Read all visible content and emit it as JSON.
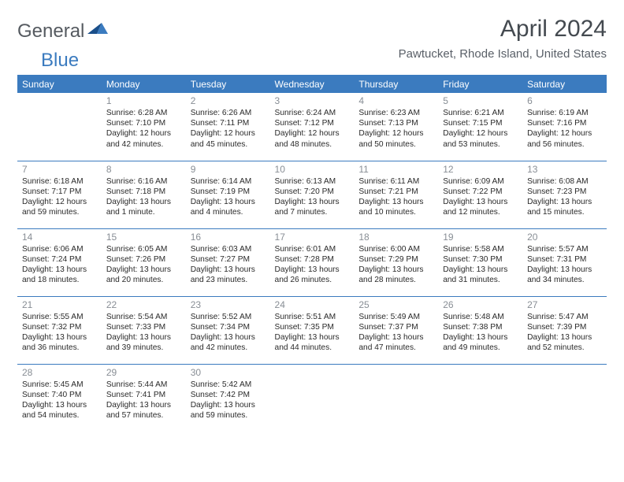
{
  "brand": {
    "general": "General",
    "blue": "Blue"
  },
  "title": "April 2024",
  "location": "Pawtucket, Rhode Island, United States",
  "header_color": "#3b7bbf",
  "days": [
    "Sunday",
    "Monday",
    "Tuesday",
    "Wednesday",
    "Thursday",
    "Friday",
    "Saturday"
  ],
  "weeks": [
    [
      {
        "n": "",
        "l": ""
      },
      {
        "n": "1",
        "l": "Sunrise: 6:28 AM\nSunset: 7:10 PM\nDaylight: 12 hours and 42 minutes."
      },
      {
        "n": "2",
        "l": "Sunrise: 6:26 AM\nSunset: 7:11 PM\nDaylight: 12 hours and 45 minutes."
      },
      {
        "n": "3",
        "l": "Sunrise: 6:24 AM\nSunset: 7:12 PM\nDaylight: 12 hours and 48 minutes."
      },
      {
        "n": "4",
        "l": "Sunrise: 6:23 AM\nSunset: 7:13 PM\nDaylight: 12 hours and 50 minutes."
      },
      {
        "n": "5",
        "l": "Sunrise: 6:21 AM\nSunset: 7:15 PM\nDaylight: 12 hours and 53 minutes."
      },
      {
        "n": "6",
        "l": "Sunrise: 6:19 AM\nSunset: 7:16 PM\nDaylight: 12 hours and 56 minutes."
      }
    ],
    [
      {
        "n": "7",
        "l": "Sunrise: 6:18 AM\nSunset: 7:17 PM\nDaylight: 12 hours and 59 minutes."
      },
      {
        "n": "8",
        "l": "Sunrise: 6:16 AM\nSunset: 7:18 PM\nDaylight: 13 hours and 1 minute."
      },
      {
        "n": "9",
        "l": "Sunrise: 6:14 AM\nSunset: 7:19 PM\nDaylight: 13 hours and 4 minutes."
      },
      {
        "n": "10",
        "l": "Sunrise: 6:13 AM\nSunset: 7:20 PM\nDaylight: 13 hours and 7 minutes."
      },
      {
        "n": "11",
        "l": "Sunrise: 6:11 AM\nSunset: 7:21 PM\nDaylight: 13 hours and 10 minutes."
      },
      {
        "n": "12",
        "l": "Sunrise: 6:09 AM\nSunset: 7:22 PM\nDaylight: 13 hours and 12 minutes."
      },
      {
        "n": "13",
        "l": "Sunrise: 6:08 AM\nSunset: 7:23 PM\nDaylight: 13 hours and 15 minutes."
      }
    ],
    [
      {
        "n": "14",
        "l": "Sunrise: 6:06 AM\nSunset: 7:24 PM\nDaylight: 13 hours and 18 minutes."
      },
      {
        "n": "15",
        "l": "Sunrise: 6:05 AM\nSunset: 7:26 PM\nDaylight: 13 hours and 20 minutes."
      },
      {
        "n": "16",
        "l": "Sunrise: 6:03 AM\nSunset: 7:27 PM\nDaylight: 13 hours and 23 minutes."
      },
      {
        "n": "17",
        "l": "Sunrise: 6:01 AM\nSunset: 7:28 PM\nDaylight: 13 hours and 26 minutes."
      },
      {
        "n": "18",
        "l": "Sunrise: 6:00 AM\nSunset: 7:29 PM\nDaylight: 13 hours and 28 minutes."
      },
      {
        "n": "19",
        "l": "Sunrise: 5:58 AM\nSunset: 7:30 PM\nDaylight: 13 hours and 31 minutes."
      },
      {
        "n": "20",
        "l": "Sunrise: 5:57 AM\nSunset: 7:31 PM\nDaylight: 13 hours and 34 minutes."
      }
    ],
    [
      {
        "n": "21",
        "l": "Sunrise: 5:55 AM\nSunset: 7:32 PM\nDaylight: 13 hours and 36 minutes."
      },
      {
        "n": "22",
        "l": "Sunrise: 5:54 AM\nSunset: 7:33 PM\nDaylight: 13 hours and 39 minutes."
      },
      {
        "n": "23",
        "l": "Sunrise: 5:52 AM\nSunset: 7:34 PM\nDaylight: 13 hours and 42 minutes."
      },
      {
        "n": "24",
        "l": "Sunrise: 5:51 AM\nSunset: 7:35 PM\nDaylight: 13 hours and 44 minutes."
      },
      {
        "n": "25",
        "l": "Sunrise: 5:49 AM\nSunset: 7:37 PM\nDaylight: 13 hours and 47 minutes."
      },
      {
        "n": "26",
        "l": "Sunrise: 5:48 AM\nSunset: 7:38 PM\nDaylight: 13 hours and 49 minutes."
      },
      {
        "n": "27",
        "l": "Sunrise: 5:47 AM\nSunset: 7:39 PM\nDaylight: 13 hours and 52 minutes."
      }
    ],
    [
      {
        "n": "28",
        "l": "Sunrise: 5:45 AM\nSunset: 7:40 PM\nDaylight: 13 hours and 54 minutes."
      },
      {
        "n": "29",
        "l": "Sunrise: 5:44 AM\nSunset: 7:41 PM\nDaylight: 13 hours and 57 minutes."
      },
      {
        "n": "30",
        "l": "Sunrise: 5:42 AM\nSunset: 7:42 PM\nDaylight: 13 hours and 59 minutes."
      },
      {
        "n": "",
        "l": ""
      },
      {
        "n": "",
        "l": ""
      },
      {
        "n": "",
        "l": ""
      },
      {
        "n": "",
        "l": ""
      }
    ]
  ]
}
